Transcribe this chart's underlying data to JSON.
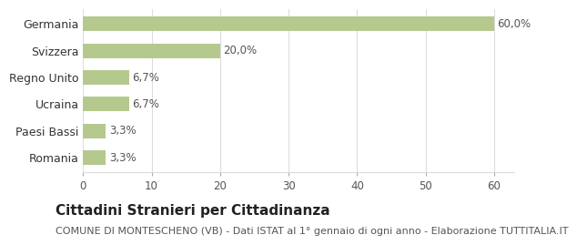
{
  "categories": [
    "Germania",
    "Svizzera",
    "Regno Unito",
    "Ucraina",
    "Paesi Bassi",
    "Romania"
  ],
  "values": [
    60.0,
    20.0,
    6.7,
    6.7,
    3.3,
    3.3
  ],
  "labels": [
    "60,0%",
    "20,0%",
    "6,7%",
    "6,7%",
    "3,3%",
    "3,3%"
  ],
  "bar_color": "#b5c98e",
  "background_color": "#ffffff",
  "title": "Cittadini Stranieri per Cittadinanza",
  "subtitle": "COMUNE DI MONTESCHENO (VB) - Dati ISTAT al 1° gennaio di ogni anno - Elaborazione TUTTITALIA.IT",
  "xlim": [
    0,
    63
  ],
  "xticks": [
    0,
    10,
    20,
    30,
    40,
    50,
    60
  ],
  "title_fontsize": 11,
  "subtitle_fontsize": 8,
  "label_fontsize": 8.5,
  "ytick_fontsize": 9,
  "xtick_fontsize": 8.5,
  "grid_color": "#dddddd"
}
